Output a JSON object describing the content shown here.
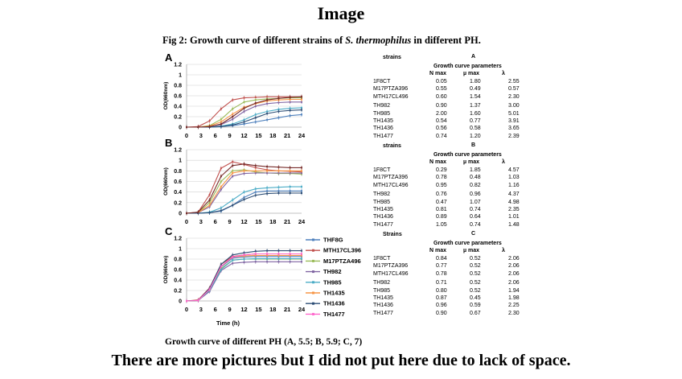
{
  "heading": "Image",
  "figure_title_prefix": "Fig 2: Growth curve of different strains of ",
  "figure_title_species": "S. thermophilus",
  "figure_title_suffix": " in different PH.",
  "caption": "Growth curve of different PH (A, 5.5; B, 5.9; C, 7)",
  "footer": "There are more pictures but I did not put here due to lack of space.",
  "chart_data": [
    {
      "panel": "A",
      "type": "line",
      "ylabel": "OD(660nm)",
      "xlabel": "",
      "x_ticks": [
        0,
        3,
        6,
        9,
        12,
        15,
        18,
        21,
        24
      ],
      "y_ticks": [
        "0",
        "0.2",
        "0.4",
        "0.6",
        "0.8",
        "1",
        "1.2"
      ],
      "ylim": [
        0,
        1.2
      ],
      "xlim": [
        0,
        24
      ],
      "series": [
        {
          "color": "#4f81bd",
          "values": [
            0,
            0,
            0,
            0.01,
            0.03,
            0.06,
            0.1,
            0.14,
            0.18,
            0.22,
            0.24
          ]
        },
        {
          "color": "#c0504d",
          "values": [
            0,
            0.01,
            0.12,
            0.35,
            0.52,
            0.56,
            0.57,
            0.58,
            0.58,
            0.58,
            0.58
          ]
        },
        {
          "color": "#9bbb59",
          "values": [
            0,
            0,
            0.03,
            0.15,
            0.35,
            0.48,
            0.52,
            0.54,
            0.55,
            0.56,
            0.56
          ]
        },
        {
          "color": "#8064a2",
          "values": [
            0,
            0,
            0.01,
            0.05,
            0.15,
            0.3,
            0.4,
            0.45,
            0.47,
            0.48,
            0.48
          ]
        },
        {
          "color": "#4bacc6",
          "values": [
            0,
            0,
            0,
            0.02,
            0.06,
            0.14,
            0.24,
            0.3,
            0.34,
            0.36,
            0.37
          ]
        },
        {
          "color": "#f79646",
          "values": [
            0,
            0,
            0.02,
            0.1,
            0.25,
            0.38,
            0.45,
            0.5,
            0.52,
            0.53,
            0.53
          ]
        },
        {
          "color": "#2c4d75",
          "values": [
            0,
            0,
            0,
            0.01,
            0.04,
            0.1,
            0.18,
            0.26,
            0.3,
            0.32,
            0.33
          ]
        },
        {
          "color": "#772c2a",
          "values": [
            0,
            0,
            0.01,
            0.06,
            0.2,
            0.36,
            0.46,
            0.52,
            0.55,
            0.57,
            0.58
          ]
        }
      ]
    },
    {
      "panel": "B",
      "type": "line",
      "ylabel": "OD(660nm)",
      "xlabel": "",
      "x_ticks": [
        0,
        3,
        6,
        9,
        12,
        15,
        18,
        21,
        24
      ],
      "y_ticks": [
        "0",
        "0.2",
        "0.4",
        "0.6",
        "0.8",
        "1",
        "1.2"
      ],
      "ylim": [
        0,
        1.2
      ],
      "xlim": [
        0,
        24
      ],
      "series": [
        {
          "color": "#4f81bd",
          "values": [
            0,
            0,
            0.01,
            0.04,
            0.15,
            0.3,
            0.4,
            0.42,
            0.42,
            0.42,
            0.42
          ]
        },
        {
          "color": "#c0504d",
          "values": [
            0,
            0.02,
            0.35,
            0.85,
            0.97,
            0.92,
            0.86,
            0.82,
            0.8,
            0.79,
            0.78
          ]
        },
        {
          "color": "#9bbb59",
          "values": [
            0,
            0.01,
            0.2,
            0.6,
            0.8,
            0.82,
            0.78,
            0.76,
            0.75,
            0.75,
            0.74
          ]
        },
        {
          "color": "#8064a2",
          "values": [
            0,
            0.01,
            0.12,
            0.45,
            0.7,
            0.75,
            0.76,
            0.76,
            0.76,
            0.76,
            0.76
          ]
        },
        {
          "color": "#4bacc6",
          "values": [
            0,
            0,
            0.02,
            0.1,
            0.25,
            0.4,
            0.46,
            0.48,
            0.49,
            0.5,
            0.5
          ]
        },
        {
          "color": "#f79646",
          "values": [
            0,
            0.01,
            0.15,
            0.5,
            0.76,
            0.8,
            0.8,
            0.8,
            0.8,
            0.8,
            0.8
          ]
        },
        {
          "color": "#2c4d75",
          "values": [
            0,
            0,
            0.01,
            0.05,
            0.15,
            0.26,
            0.34,
            0.37,
            0.38,
            0.38,
            0.38
          ]
        },
        {
          "color": "#772c2a",
          "values": [
            0,
            0.02,
            0.25,
            0.7,
            0.9,
            0.93,
            0.9,
            0.88,
            0.87,
            0.86,
            0.86
          ]
        }
      ]
    },
    {
      "panel": "C",
      "type": "line",
      "ylabel": "OD(660nm)",
      "xlabel": "Time (h)",
      "x_ticks": [
        0,
        3,
        6,
        9,
        12,
        15,
        18,
        21,
        24
      ],
      "y_ticks": [
        "0",
        "0.2",
        "0.4",
        "0.6",
        "0.8",
        "1",
        "1.2"
      ],
      "ylim": [
        0,
        1.2
      ],
      "xlim": [
        0,
        24
      ],
      "legend": [
        "THF8G",
        "MTH17CL396",
        "M17PTZA496",
        "TH982",
        "TH985",
        "TH1435",
        "TH1436",
        "TH1477"
      ],
      "series": [
        {
          "name": "THF8G",
          "color": "#4f81bd",
          "values": [
            0,
            0.01,
            0.2,
            0.65,
            0.82,
            0.84,
            0.85,
            0.85,
            0.85,
            0.85,
            0.85
          ]
        },
        {
          "name": "MTH17CL396",
          "color": "#c0504d",
          "values": [
            0,
            0.02,
            0.25,
            0.7,
            0.85,
            0.88,
            0.9,
            0.9,
            0.9,
            0.9,
            0.9
          ]
        },
        {
          "name": "M17PTZA496",
          "color": "#9bbb59",
          "values": [
            0,
            0.01,
            0.2,
            0.62,
            0.78,
            0.8,
            0.8,
            0.8,
            0.8,
            0.8,
            0.8
          ]
        },
        {
          "name": "TH982",
          "color": "#8064a2",
          "values": [
            0,
            0.01,
            0.18,
            0.58,
            0.72,
            0.74,
            0.75,
            0.75,
            0.75,
            0.75,
            0.75
          ]
        },
        {
          "name": "TH985",
          "color": "#4bacc6",
          "values": [
            0,
            0.01,
            0.2,
            0.6,
            0.78,
            0.8,
            0.81,
            0.81,
            0.81,
            0.81,
            0.81
          ]
        },
        {
          "name": "TH1435",
          "color": "#f79646",
          "values": [
            0,
            0.01,
            0.22,
            0.66,
            0.84,
            0.86,
            0.87,
            0.87,
            0.87,
            0.87,
            0.87
          ]
        },
        {
          "name": "TH1436",
          "color": "#2c4d75",
          "values": [
            0,
            0.01,
            0.24,
            0.7,
            0.88,
            0.92,
            0.95,
            0.96,
            0.96,
            0.96,
            0.96
          ]
        },
        {
          "name": "TH1477",
          "color": "#ff66cc",
          "values": [
            0,
            0.01,
            0.22,
            0.66,
            0.84,
            0.88,
            0.9,
            0.9,
            0.9,
            0.9,
            0.9
          ]
        }
      ]
    }
  ],
  "tables": [
    {
      "panel": "A",
      "title": "A",
      "strains_label": "strains",
      "params_label": "Growth curve parameters",
      "col_headers": [
        "N max",
        "µ max",
        "λ"
      ],
      "rows": [
        [
          "1F8CT",
          "0.05",
          "1.80",
          "2.55"
        ],
        [
          "M17PTZA396",
          "0.55",
          "0.49",
          "0.57"
        ],
        [
          "MTH17CL496",
          "0.60",
          "1.54",
          "2.30"
        ],
        [
          "TH982",
          "0.90",
          "1.37",
          "3.00"
        ],
        [
          "TH985",
          "2.00",
          "1.60",
          "5.01"
        ],
        [
          "TH1435",
          "0.54",
          "0.77",
          "3.91"
        ],
        [
          "TH1436",
          "0.56",
          "0.58",
          "3.65"
        ],
        [
          "TH1477",
          "0.74",
          "1.20",
          "2.39"
        ]
      ]
    },
    {
      "panel": "B",
      "title": "B",
      "strains_label": "strains",
      "params_label": "Growth curve parameters",
      "col_headers": [
        "N max",
        "µ max",
        "λ"
      ],
      "rows": [
        [
          "1F8CT",
          "0.29",
          "1.85",
          "4.57"
        ],
        [
          "M17PTZA396",
          "0.78",
          "0.48",
          "1.03"
        ],
        [
          "MTH17CL496",
          "0.95",
          "0.82",
          "1.16"
        ],
        [
          "TH982",
          "0.76",
          "0.96",
          "4.37"
        ],
        [
          "TH985",
          "0.47",
          "1.07",
          "4.98"
        ],
        [
          "TH1435",
          "0.81",
          "0.74",
          "2.35"
        ],
        [
          "TH1436",
          "0.89",
          "0.64",
          "1.01"
        ],
        [
          "TH1477",
          "1.05",
          "0.74",
          "1.48"
        ]
      ]
    },
    {
      "panel": "C",
      "title": "C",
      "strains_label": "Strains",
      "params_label": "Growth curve parameters",
      "col_headers": [
        "N max",
        "µ max",
        "λ"
      ],
      "rows": [
        [
          "1F8CT",
          "0.84",
          "0.52",
          "2.06"
        ],
        [
          "M17PTZA396",
          "0.77",
          "0.52",
          "2.06"
        ],
        [
          "MTH17CL496",
          "0.78",
          "0.52",
          "2.06"
        ],
        [
          "TH982",
          "0.71",
          "0.52",
          "2.06"
        ],
        [
          "TH985",
          "0.80",
          "0.52",
          "1.94"
        ],
        [
          "TH1435",
          "0.87",
          "0.45",
          "1.98"
        ],
        [
          "TH1436",
          "0.96",
          "0.59",
          "2.25"
        ],
        [
          "TH1477",
          "0.90",
          "0.67",
          "2.30"
        ]
      ]
    }
  ]
}
